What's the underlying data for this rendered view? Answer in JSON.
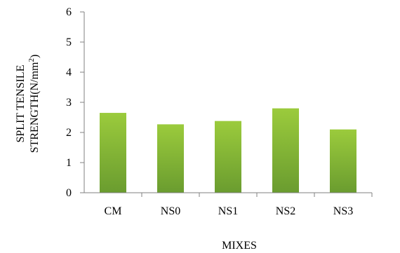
{
  "chart_data": {
    "type": "bar",
    "categories": [
      "CM",
      "NS0",
      "NS1",
      "NS2",
      "NS3"
    ],
    "values": [
      2.65,
      2.27,
      2.38,
      2.8,
      2.1
    ],
    "title": "",
    "xlabel": "MIXES",
    "ylabel_line1": "SPLIT TENSILE",
    "ylabel_line2_base": "STRENGTH(N/mm",
    "ylabel_line2_sup": "2",
    "ylabel_line2_end": ")",
    "ylim": [
      0,
      6
    ],
    "yticks": [
      "0",
      "1",
      "2",
      "3",
      "4",
      "5",
      "6"
    ],
    "grid": false,
    "legend": "none",
    "colors": {
      "bar_top": "#9bcb3c",
      "bar_bottom": "#6a9c2f",
      "axis": "#808080"
    }
  }
}
